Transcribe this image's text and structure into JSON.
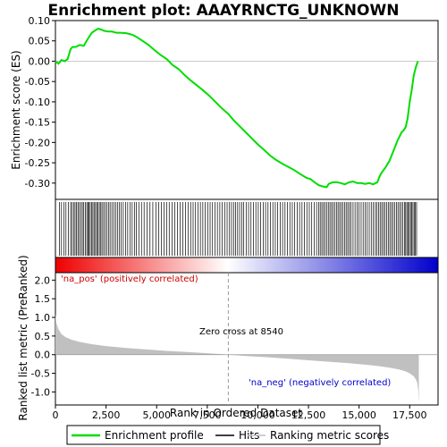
{
  "chart_data": [
    {
      "type": "line",
      "title": "Enrichment plot: AAAYRNCTG_UNKNOWN",
      "ylabel": "Enrichment score (ES)",
      "ylim": [
        -0.34,
        0.1
      ],
      "xlim": [
        0,
        18900
      ],
      "yticks": [
        0.1,
        0.05,
        0.0,
        -0.05,
        -0.1,
        -0.15,
        -0.2,
        -0.25,
        -0.3
      ],
      "ytick_labels": [
        "0.10",
        "0.05",
        "0.00",
        "-0.05",
        "-0.10",
        "-0.15",
        "-0.20",
        "-0.25",
        "-0.30"
      ],
      "grid": false,
      "series": [
        {
          "name": "Enrichment profile",
          "color": "#00dd00",
          "x": [
            0,
            150,
            300,
            450,
            600,
            750,
            850,
            1000,
            1200,
            1400,
            1600,
            1800,
            2000,
            2100,
            2250,
            2400,
            2600,
            2800,
            3000,
            3200,
            3500,
            3800,
            4000,
            4300,
            4600,
            4900,
            5200,
            5500,
            5800,
            6100,
            6400,
            6700,
            7000,
            7300,
            7600,
            7900,
            8200,
            8540,
            8800,
            9100,
            9400,
            9700,
            10000,
            10300,
            10600,
            10900,
            11200,
            11500,
            11800,
            12100,
            12400,
            12600,
            12800,
            13000,
            13200,
            13400,
            13500,
            13700,
            13900,
            14100,
            14300,
            14500,
            14700,
            14900,
            15100,
            15300,
            15500,
            15700,
            15900,
            16000,
            16100,
            16300,
            16500,
            16700,
            16900,
            17100,
            17200,
            17300,
            17400,
            17500,
            17600,
            17700,
            17800,
            17900
          ],
          "y": [
            0.0,
            -0.006,
            0.003,
            0.0,
            0.005,
            0.03,
            0.035,
            0.035,
            0.04,
            0.038,
            0.055,
            0.07,
            0.077,
            0.08,
            0.078,
            0.075,
            0.073,
            0.073,
            0.07,
            0.07,
            0.069,
            0.065,
            0.06,
            0.05,
            0.04,
            0.027,
            0.015,
            0.005,
            -0.01,
            -0.02,
            -0.035,
            -0.048,
            -0.06,
            -0.072,
            -0.085,
            -0.1,
            -0.115,
            -0.13,
            -0.145,
            -0.16,
            -0.175,
            -0.19,
            -0.205,
            -0.218,
            -0.232,
            -0.243,
            -0.252,
            -0.26,
            -0.268,
            -0.278,
            -0.287,
            -0.29,
            -0.298,
            -0.305,
            -0.308,
            -0.31,
            -0.302,
            -0.298,
            -0.298,
            -0.3,
            -0.303,
            -0.298,
            -0.296,
            -0.3,
            -0.3,
            -0.302,
            -0.3,
            -0.303,
            -0.298,
            -0.285,
            -0.275,
            -0.262,
            -0.245,
            -0.22,
            -0.195,
            -0.175,
            -0.17,
            -0.162,
            -0.14,
            -0.1,
            -0.07,
            -0.035,
            -0.015,
            0.0
          ]
        }
      ]
    },
    {
      "type": "heatmap",
      "name": "Hits",
      "colors": {
        "hit_line": "#000000",
        "positive": "#ee0000",
        "neutral": "#ffffff",
        "negative": "#0000cc"
      },
      "hit_positions": [
        200,
        300,
        420,
        520,
        640,
        750,
        820,
        900,
        970,
        1040,
        1110,
        1180,
        1260,
        1330,
        1400,
        1480,
        1550,
        1610,
        1660,
        1720,
        1790,
        1850,
        1910,
        1980,
        2040,
        2100,
        2170,
        2240,
        2300,
        2380,
        2460,
        2540,
        2620,
        2700,
        2790,
        2880,
        2970,
        3060,
        3150,
        3250,
        3350,
        3460,
        3570,
        3680,
        3790,
        3900,
        4000,
        4120,
        4250,
        4380,
        4520,
        4670,
        4810,
        4960,
        5100,
        5230,
        5360,
        5490,
        5620,
        5760,
        5900,
        6030,
        6160,
        6290,
        6420,
        6550,
        6680,
        6800,
        6920,
        7040,
        7160,
        7280,
        7400,
        7520,
        7640,
        7760,
        7880,
        8000,
        8120,
        8240,
        8360,
        8480,
        8600,
        8700,
        8800,
        8900,
        9000,
        9100,
        9200,
        9300,
        9420,
        9540,
        9660,
        9780,
        9900,
        10020,
        10140,
        10260,
        10380,
        10500,
        10620,
        10740,
        10860,
        10980,
        11100,
        11220,
        11340,
        11460,
        11580,
        11700,
        11820,
        11940,
        12060,
        12180,
        12300,
        12420,
        12540,
        12660,
        12780,
        12900,
        13000,
        13080,
        13160,
        13240,
        13320,
        13400,
        13480,
        13560,
        13640,
        13720,
        13800,
        13880,
        13960,
        14040,
        14120,
        14200,
        14280,
        14360,
        14440,
        14520,
        14600,
        14700,
        14800,
        14900,
        15000,
        15100,
        15200,
        15300,
        15400,
        15500,
        15600,
        15700,
        15800,
        15880,
        15960,
        16040,
        16120,
        16200,
        16280,
        16360,
        16440,
        16520,
        16600,
        16680,
        16760,
        16840,
        16920,
        17000,
        17080,
        17160,
        17240,
        17300,
        17360,
        17420,
        17480,
        17540,
        17600,
        17660,
        17720,
        17780,
        17840
      ]
    },
    {
      "type": "area",
      "ylabel": "Ranked list metric (PreRanked)",
      "xlabel": "Rank in Ordered Dataset",
      "ylim": [
        -1.35,
        2.2
      ],
      "xlim": [
        0,
        18900
      ],
      "yticks": [
        2.0,
        1.5,
        1.0,
        0.5,
        0.0,
        -0.5,
        -1.0
      ],
      "ytick_labels": [
        "2.0",
        "1.5",
        "1.0",
        "0.5",
        "0.0",
        "-0.5",
        "-1.0"
      ],
      "xticks": [
        0,
        2500,
        5000,
        7500,
        10000,
        12500,
        15000,
        17500
      ],
      "xtick_labels": [
        "0",
        "2,500",
        "5,000",
        "7,500",
        "10,000",
        "12,500",
        "15,000",
        "17,500"
      ],
      "zero_cross": 8540,
      "series": [
        {
          "name": "Ranking metric scores",
          "color": "#c0c0c0",
          "x": [
            0,
            50,
            150,
            300,
            500,
            800,
            1200,
            1800,
            2500,
            3500,
            4500,
            5500,
            6500,
            7500,
            8540,
            9500,
            10500,
            11500,
            12500,
            13500,
            14500,
            15500,
            16000,
            16500,
            17000,
            17300,
            17500,
            17700,
            17800,
            17870,
            17920,
            17950
          ],
          "y": [
            1.1,
            0.85,
            0.68,
            0.55,
            0.47,
            0.4,
            0.34,
            0.28,
            0.23,
            0.18,
            0.14,
            0.1,
            0.07,
            0.04,
            0.0,
            -0.04,
            -0.07,
            -0.11,
            -0.15,
            -0.19,
            -0.23,
            -0.28,
            -0.31,
            -0.35,
            -0.4,
            -0.45,
            -0.5,
            -0.58,
            -0.66,
            -0.75,
            -0.95,
            -1.3
          ]
        }
      ]
    }
  ],
  "annotations": {
    "positive_label": "'na_pos' (positively correlated)",
    "negative_label": "'na_neg' (negatively correlated)",
    "zero_cross_label": "Zero cross at 8540",
    "positive_color": "#cc0000",
    "negative_color": "#0000cc"
  },
  "legend": {
    "placement": "bottom",
    "items": [
      {
        "label": "Enrichment profile",
        "color": "#00dd00"
      },
      {
        "label": "Hits",
        "color": "#000000"
      },
      {
        "label": "Ranking metric scores",
        "color": "#c0c0c0"
      }
    ]
  }
}
